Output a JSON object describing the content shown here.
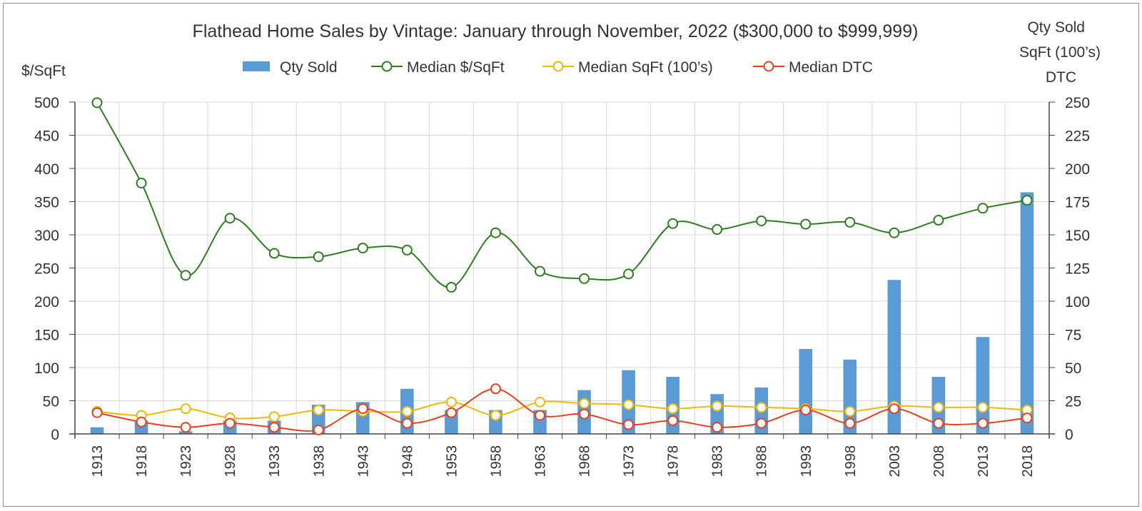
{
  "chart_data": {
    "type": "bar",
    "title": "Flathead Home Sales by Vintage: January through November, 2022 ($300,000 to $999,999)",
    "ylabel_left": "$/SqFt",
    "ylabel_right": [
      "Qty Sold",
      "SqFt (100’s)",
      "DTC"
    ],
    "ylim_left": [
      0,
      500
    ],
    "ylim_right": [
      0,
      250
    ],
    "yticks_left": [
      0,
      50,
      100,
      150,
      200,
      250,
      300,
      350,
      400,
      450,
      500
    ],
    "yticks_right": [
      0,
      25,
      50,
      75,
      100,
      125,
      150,
      175,
      200,
      225,
      250
    ],
    "grid": true,
    "legend_position": "top",
    "categories": [
      "1913",
      "1918",
      "1923",
      "1928",
      "1933",
      "1938",
      "1943",
      "1948",
      "1953",
      "1958",
      "1963",
      "1968",
      "1973",
      "1978",
      "1983",
      "1988",
      "1993",
      "1998",
      "2003",
      "2008",
      "2013",
      "2018"
    ],
    "series": [
      {
        "name": "Qty Sold",
        "type": "bar",
        "axis": "right",
        "color": "#5b9bd5",
        "values": [
          5,
          10,
          2,
          10,
          10,
          22,
          24,
          34,
          18,
          18,
          18,
          33,
          48,
          43,
          30,
          35,
          64,
          56,
          116,
          43,
          73,
          182
        ]
      },
      {
        "name": "Median $/SqFt",
        "type": "line",
        "axis": "left",
        "color": "#2e7d1e",
        "values": [
          499,
          378,
          239,
          325,
          272,
          267,
          280,
          277,
          221,
          303,
          245,
          234,
          241,
          317,
          308,
          321,
          316,
          319,
          303,
          322,
          340,
          352
        ]
      },
      {
        "name": "Median SqFt (100’s)",
        "type": "line",
        "axis": "right",
        "color": "#f2b705",
        "values": [
          17,
          14,
          19,
          12,
          13,
          18,
          17,
          17,
          24,
          14,
          24,
          23,
          22,
          19,
          21,
          20,
          19,
          17,
          21,
          20,
          20,
          18
        ]
      },
      {
        "name": "Median DTC",
        "type": "line",
        "axis": "right",
        "color": "#e8401c",
        "values": [
          16,
          9,
          5,
          8,
          5,
          3,
          19,
          8,
          16,
          34,
          14,
          15,
          7,
          10,
          5,
          8,
          18,
          8,
          19,
          8,
          8,
          12
        ]
      }
    ]
  }
}
